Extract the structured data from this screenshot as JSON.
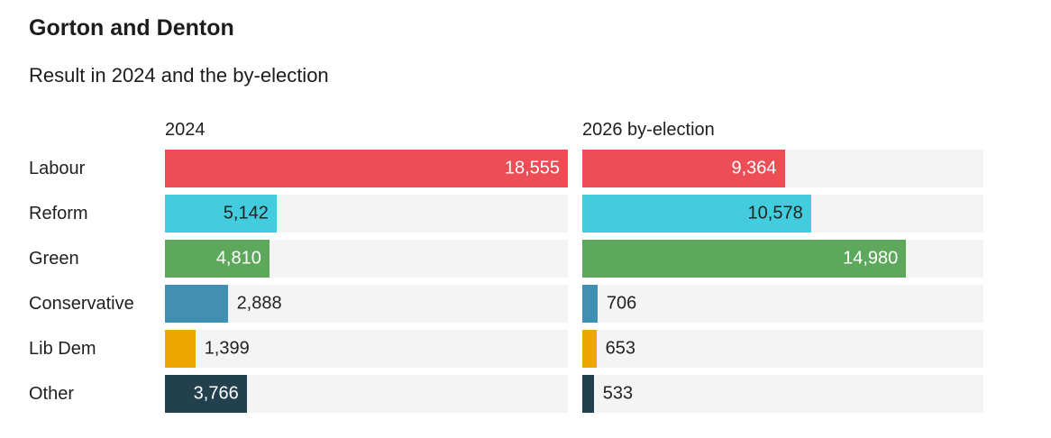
{
  "header": {
    "title": "Gorton and Denton",
    "subtitle": "Result in 2024 and the by-election"
  },
  "chart_data": {
    "type": "bar",
    "orientation": "horizontal",
    "title": "Gorton and Denton",
    "subtitle": "Result in 2024 and the by-election",
    "categories": [
      "Labour",
      "Reform",
      "Green",
      "Conservative",
      "Lib Dem",
      "Other"
    ],
    "series": [
      {
        "name": "2024",
        "values": [
          18555,
          5142,
          4810,
          2888,
          1399,
          3766
        ]
      },
      {
        "name": "2026 by-election",
        "values": [
          9364,
          10578,
          14980,
          706,
          653,
          533
        ]
      }
    ],
    "value_labels": [
      [
        "18,555",
        "5,142",
        "4,810",
        "2,888",
        "1,399",
        "3,766"
      ],
      [
        "9,364",
        "10,578",
        "14,980",
        "706",
        "653",
        "533"
      ]
    ],
    "xmax": 18555,
    "grid": false,
    "legend_position": "column-headers",
    "bar_colors": [
      "#ED4E56",
      "#42CCDD",
      "#5EA85C",
      "#4290B1",
      "#ECA800",
      "#23404E"
    ],
    "inside_label_colors": [
      "#ffffff",
      "#222222",
      "#ffffff",
      "#ffffff",
      "#222222",
      "#ffffff"
    ],
    "outside_label_color": "#222222",
    "track_color": "#F4F4F4"
  }
}
